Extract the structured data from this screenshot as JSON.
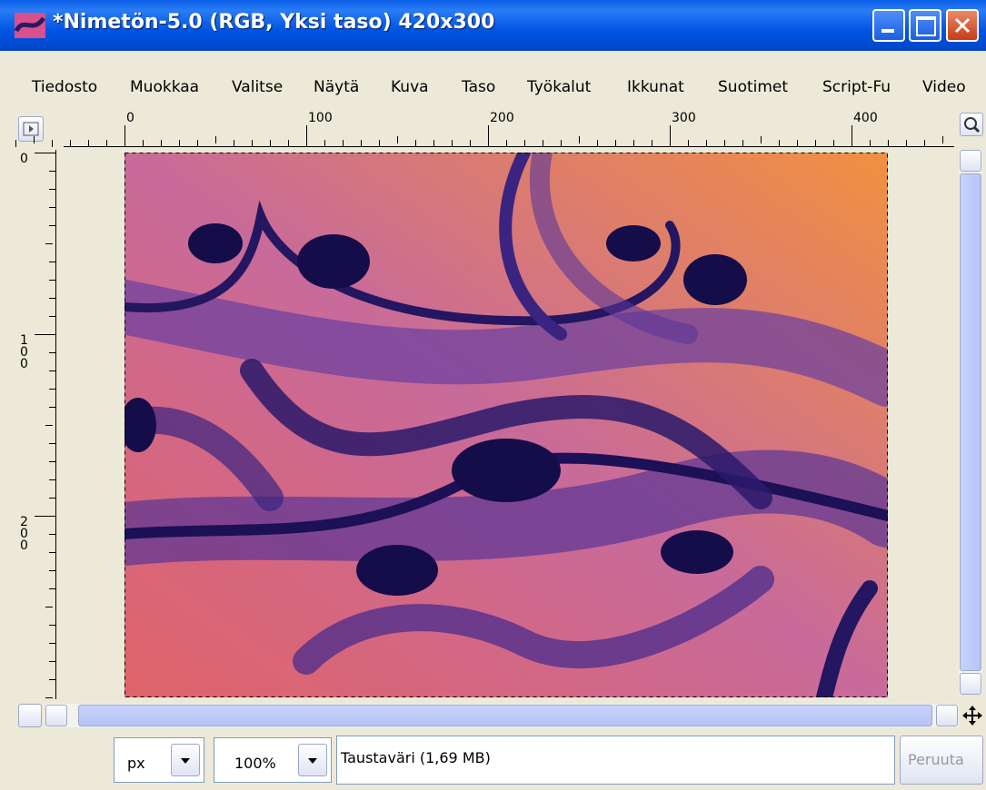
{
  "window": {
    "title": "*Nimetön-5.0 (RGB, Yksi taso) 420x300"
  },
  "menu": [
    "Tiedosto",
    "Muokkaa",
    "Valitse",
    "Näytä",
    "Kuva",
    "Taso",
    "Työkalut",
    "Ikkunat",
    "Suotimet",
    "Script-Fu",
    "Video"
  ],
  "rulers": {
    "horizontal": [
      0,
      100,
      200,
      300,
      400
    ],
    "vertical": [
      0,
      100,
      200
    ]
  },
  "status": {
    "unit": "px",
    "zoom": "100%",
    "message": "Taustaväri (1,69 MB)",
    "cancel": "Peruuta"
  }
}
